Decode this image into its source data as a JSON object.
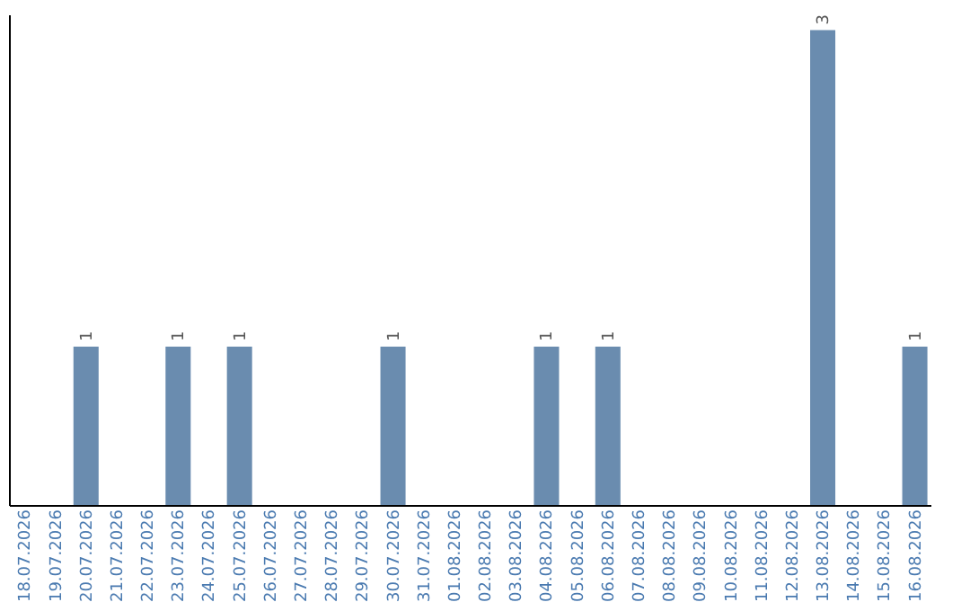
{
  "chart_data": {
    "type": "bar",
    "categories": [
      "18.07.2026",
      "19.07.2026",
      "20.07.2026",
      "21.07.2026",
      "22.07.2026",
      "23.07.2026",
      "24.07.2026",
      "25.07.2026",
      "26.07.2026",
      "27.07.2026",
      "28.07.2026",
      "29.07.2026",
      "30.07.2026",
      "31.07.2026",
      "01.08.2026",
      "02.08.2026",
      "03.08.2026",
      "04.08.2026",
      "05.08.2026",
      "06.08.2026",
      "07.08.2026",
      "08.08.2026",
      "09.08.2026",
      "10.08.2026",
      "11.08.2026",
      "12.08.2026",
      "13.08.2026",
      "14.08.2026",
      "15.08.2026",
      "16.08.2026"
    ],
    "values": [
      0,
      0,
      1,
      0,
      0,
      1,
      0,
      1,
      0,
      0,
      0,
      0,
      1,
      0,
      0,
      0,
      0,
      1,
      0,
      1,
      0,
      0,
      0,
      0,
      0,
      0,
      3,
      0,
      0,
      1
    ],
    "value_labels": [
      null,
      null,
      "1",
      null,
      null,
      "1",
      null,
      "1",
      null,
      null,
      null,
      null,
      "1",
      null,
      null,
      null,
      null,
      "1",
      null,
      "1",
      null,
      null,
      null,
      null,
      null,
      null,
      "3",
      null,
      null,
      "1"
    ],
    "color": "#6a8caf",
    "ylim": [
      0,
      3.1
    ],
    "tick_labels": "x",
    "grid": false
  }
}
